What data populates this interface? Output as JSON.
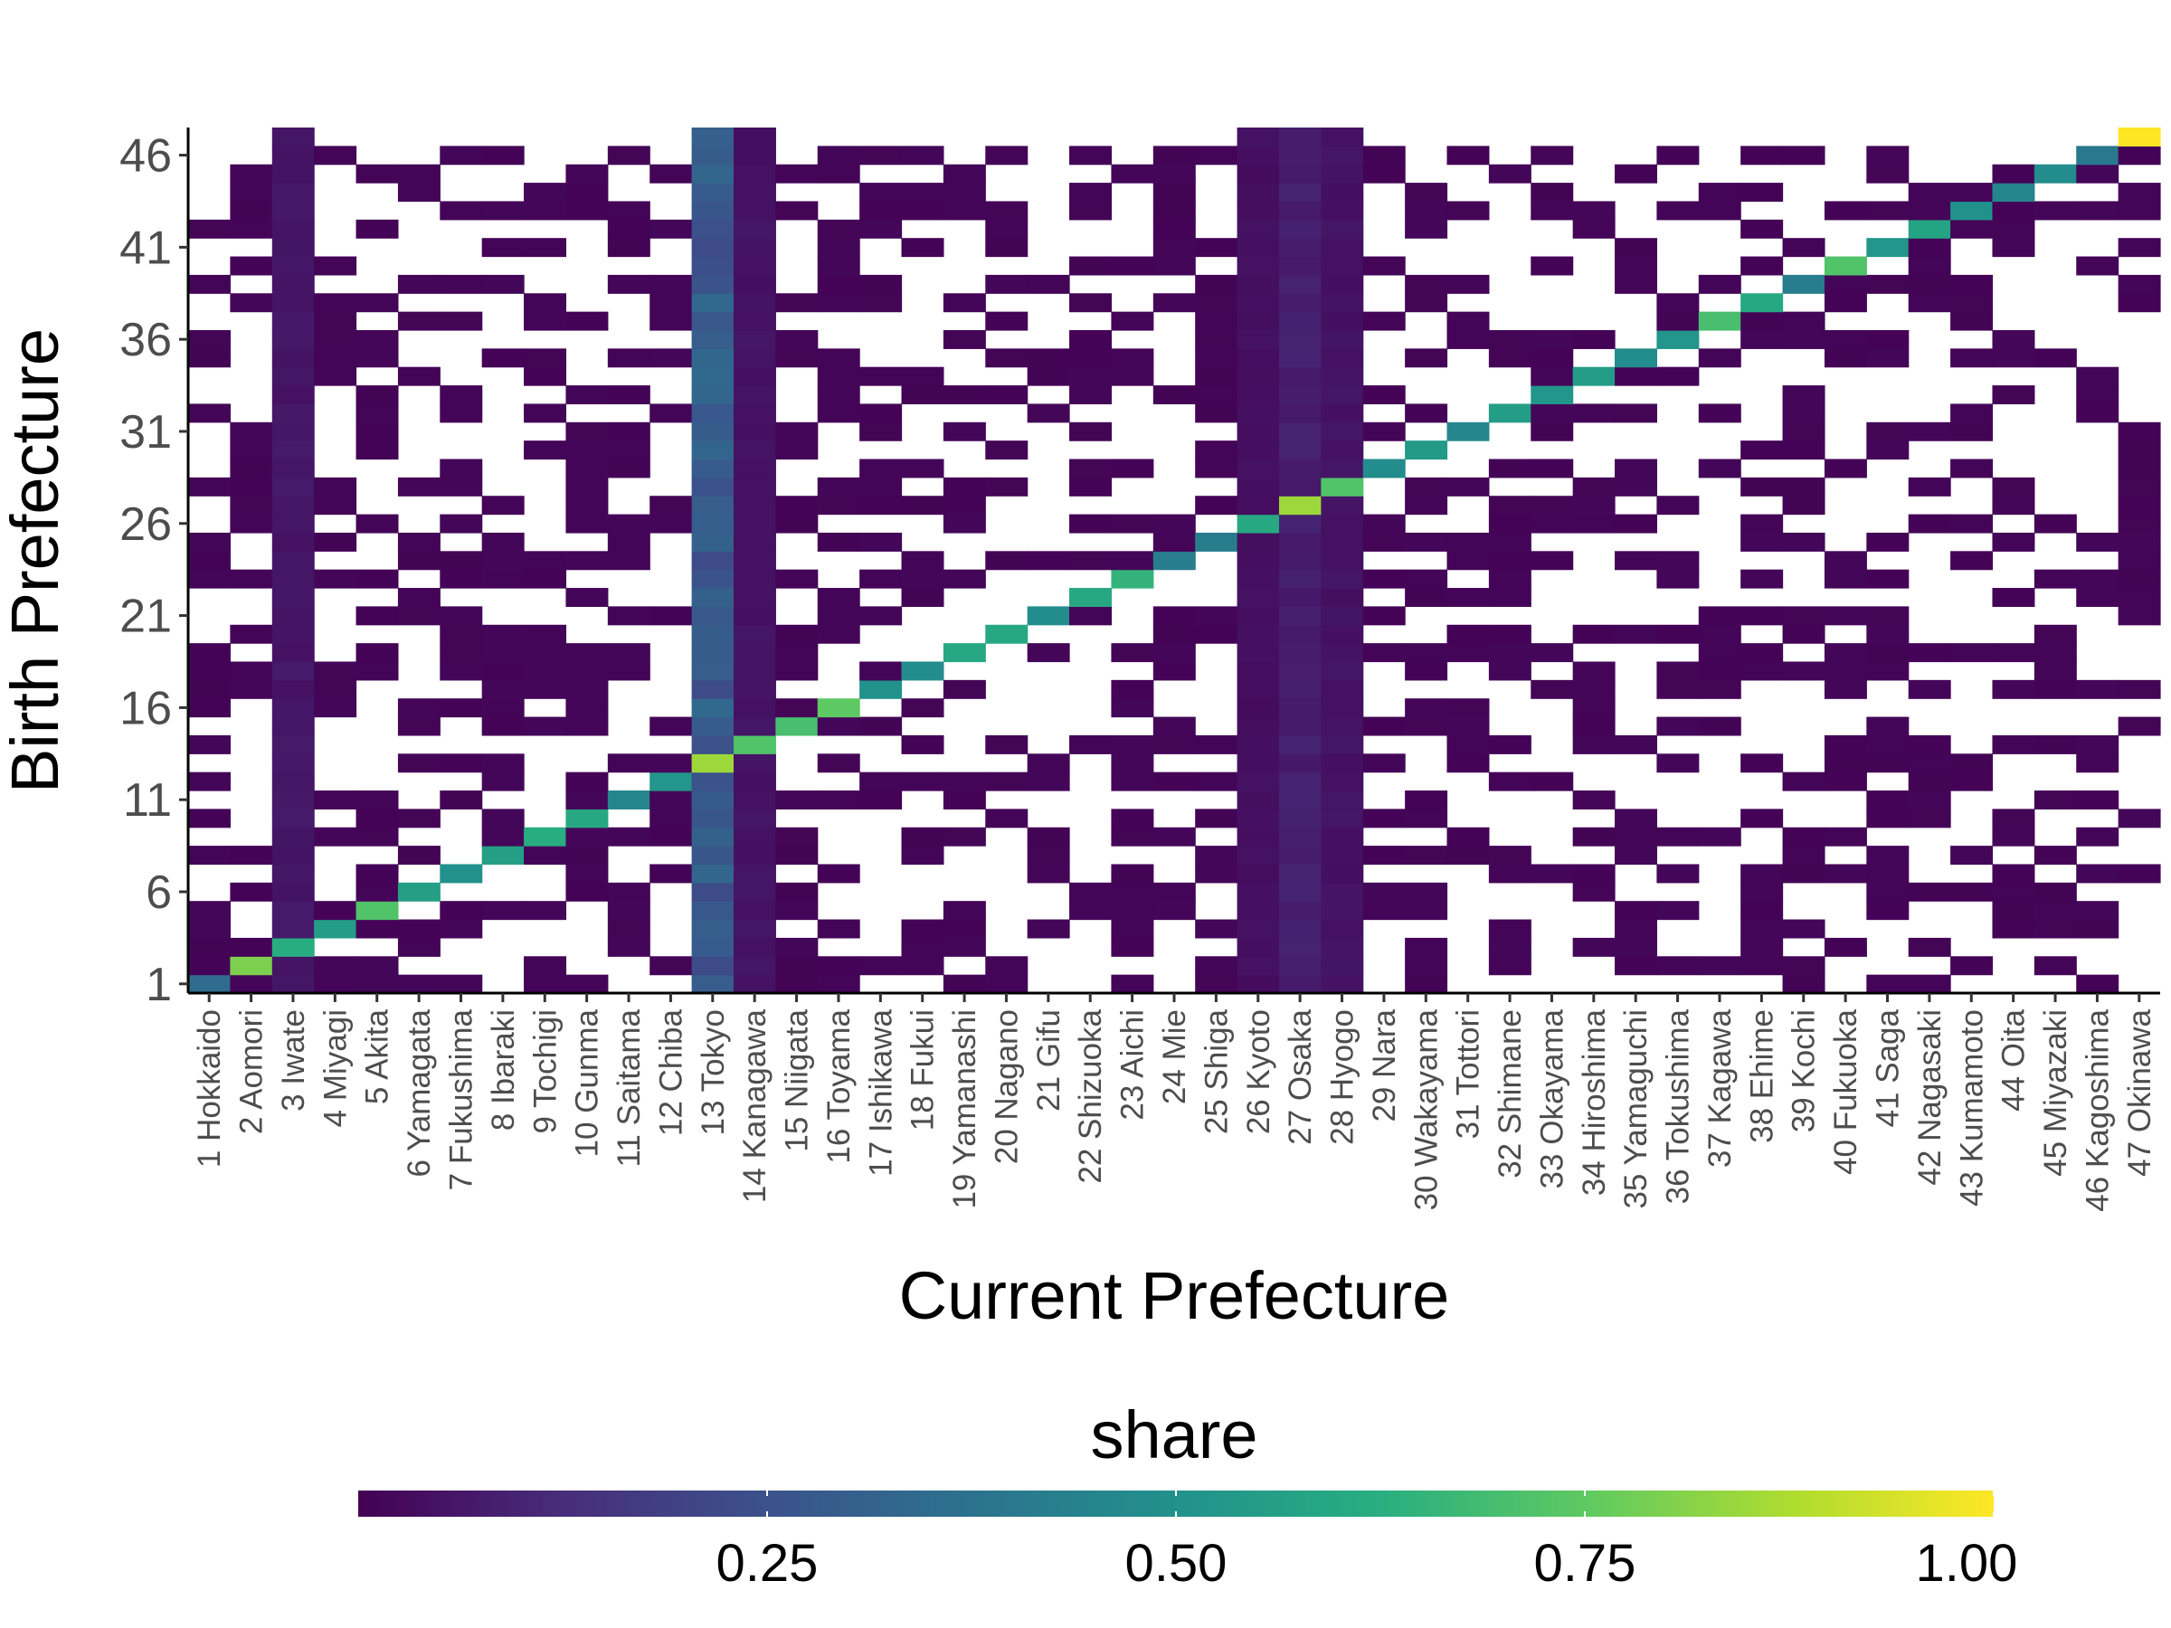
{
  "chart_data": {
    "type": "heatmap",
    "xlabel": "Current Prefecture",
    "ylabel": "Birth Prefecture",
    "legend_title": "share",
    "legend_position": "bottom",
    "colorscale": "viridis",
    "color_range": [
      0,
      1
    ],
    "legend_ticks": [
      {
        "value": 0.25,
        "label": "0.25"
      },
      {
        "value": 0.5,
        "label": "0.50"
      },
      {
        "value": 0.75,
        "label": "0.75"
      },
      {
        "value": 1.0,
        "label": "1.00"
      }
    ],
    "x_categories": [
      "1 Hokkaido",
      "2 Aomori",
      "3 Iwate",
      "4 Miyagi",
      "5 Akita",
      "6 Yamagata",
      "7 Fukushima",
      "8 Ibaraki",
      "9 Tochigi",
      "10 Gunma",
      "11 Saitama",
      "12 Chiba",
      "13 Tokyo",
      "14 Kanagawa",
      "15 Niigata",
      "16 Toyama",
      "17 Ishikawa",
      "18 Fukui",
      "19 Yamanashi",
      "20 Nagano",
      "21 Gifu",
      "22 Shizuoka",
      "23 Aichi",
      "24 Mie",
      "25 Shiga",
      "26 Kyoto",
      "27 Osaka",
      "28 Hyogo",
      "29 Nara",
      "30 Wakayama",
      "31 Tottori",
      "32 Shimane",
      "33 Okayama",
      "34 Hiroshima",
      "35 Yamaguchi",
      "36 Tokushima",
      "37 Kagawa",
      "38 Ehime",
      "39 Kochi",
      "40 Fukuoka",
      "41 Saga",
      "42 Nagasaki",
      "43 Kumamoto",
      "44 Oita",
      "45 Miyazaki",
      "46 Kagoshima",
      "47 Okinawa"
    ],
    "y_range": [
      1,
      47
    ],
    "y_ticks": [
      "1",
      "6",
      "11",
      "16",
      "21",
      "26",
      "31",
      "36",
      "41",
      "46"
    ],
    "diagonal_share": [
      0.35,
      0.8,
      0.62,
      0.55,
      0.72,
      0.56,
      0.5,
      0.56,
      0.62,
      0.6,
      0.45,
      0.52,
      0.85,
      0.72,
      0.7,
      0.75,
      0.5,
      0.48,
      0.6,
      0.6,
      0.48,
      0.6,
      0.65,
      0.42,
      0.42,
      0.6,
      0.85,
      0.72,
      0.48,
      0.54,
      0.46,
      0.55,
      0.52,
      0.55,
      0.48,
      0.52,
      0.7,
      0.6,
      0.42,
      0.72,
      0.52,
      0.58,
      0.5,
      0.45,
      0.48,
      0.4,
      1.0
    ],
    "column_share": {
      "3 Iwate": 0.06,
      "13 Tokyo": 0.28,
      "14 Kanagawa": 0.05,
      "26 Kyoto": 0.04,
      "27 Osaka": 0.08,
      "28 Hyogo": 0.05
    },
    "off_diagonal_share_typical": 0.01,
    "fill_density": 0.42
  }
}
